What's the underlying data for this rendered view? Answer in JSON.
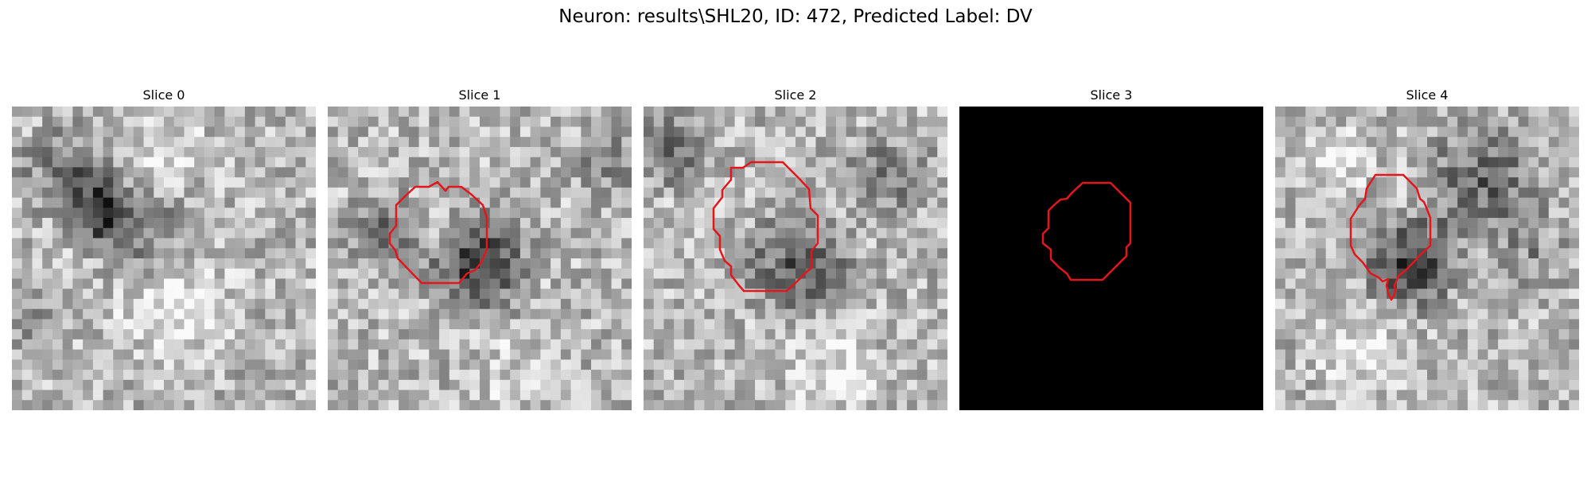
{
  "figure": {
    "suptitle": "Neuron: results\\SHL20, ID: 472, Predicted Label: DV"
  },
  "panels": [
    {
      "title": "Slice 0",
      "kind": "grayscale-noise",
      "seed": 11,
      "contour": false
    },
    {
      "title": "Slice 1",
      "kind": "grayscale-noise",
      "seed": 23,
      "contour": true
    },
    {
      "title": "Slice 2",
      "kind": "grayscale-noise",
      "seed": 37,
      "contour": true
    },
    {
      "title": "Slice 3",
      "kind": "black",
      "seed": 41,
      "contour": true
    },
    {
      "title": "Slice 4",
      "kind": "grayscale-noise",
      "seed": 53,
      "contour": true
    }
  ],
  "colors": {
    "contour": "#e3161b",
    "background": "#ffffff"
  }
}
